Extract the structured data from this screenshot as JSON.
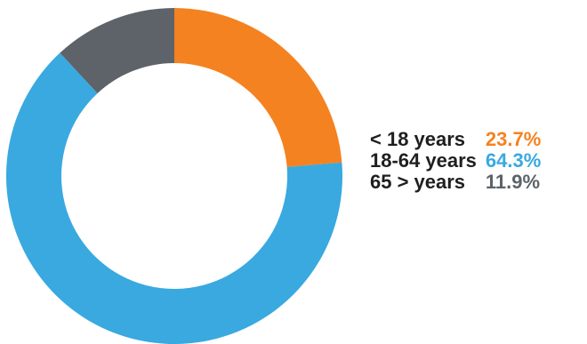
{
  "chart_data": {
    "type": "pie",
    "variant": "donut",
    "title": "",
    "slices": [
      {
        "label": "< 18 years",
        "value": 23.7,
        "value_label": "23.7%",
        "color": "#f58220"
      },
      {
        "label": "18-64 years",
        "value": 64.3,
        "value_label": "64.3%",
        "color": "#39a9e0"
      },
      {
        "label": "65 > years",
        "value": 11.9,
        "value_label": "11.9%",
        "color": "#5d6369"
      }
    ],
    "start_angle_deg": 0,
    "direction": "clockwise",
    "legend_position": "right"
  }
}
